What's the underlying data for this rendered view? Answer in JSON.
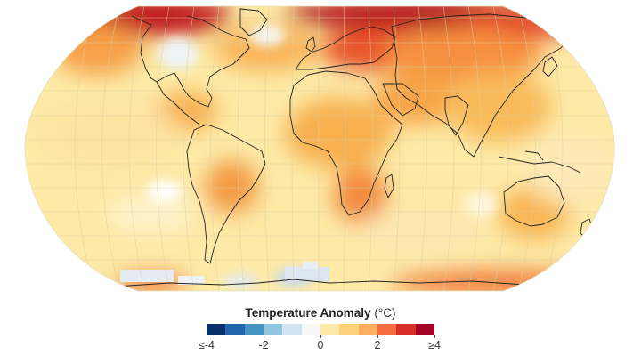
{
  "legend": {
    "title": "Temperature Anomaly",
    "unit": "(°C)",
    "colors": [
      "#08306b",
      "#2166ac",
      "#4393c3",
      "#92c5de",
      "#d1e5f0",
      "#f7f7f7",
      "#fee8a8",
      "#fdd07a",
      "#fdae61",
      "#f46d43",
      "#d73027",
      "#a50026"
    ],
    "ticks": [
      {
        "label": "≤-4",
        "value": -4
      },
      {
        "label": "-2",
        "value": -2
      },
      {
        "label": "0",
        "value": 0
      },
      {
        "label": "2",
        "value": 2
      },
      {
        "label": "≥4",
        "value": 4
      }
    ],
    "range": [
      -4,
      4
    ]
  },
  "map": {
    "projection": "Robinson",
    "background_color": "#fdeaa6",
    "coastline_color": "#222222",
    "grid_color": "#d9cfa8"
  }
}
